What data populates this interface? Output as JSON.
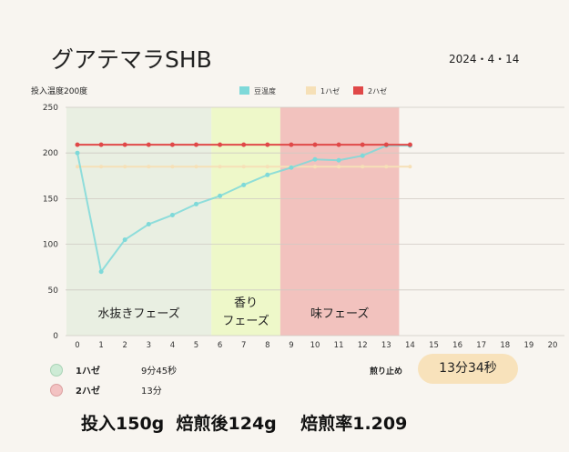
{
  "header": {
    "title": "グアテマラSHB",
    "date": "2024・4・14",
    "y_axis_label": "投入温度200度"
  },
  "chart_data": {
    "type": "line",
    "x": [
      0,
      1,
      2,
      3,
      4,
      5,
      6,
      7,
      8,
      9,
      10,
      11,
      12,
      13,
      14,
      15,
      16,
      17,
      18,
      19,
      20
    ],
    "xlim": [
      0,
      20
    ],
    "ylim": [
      0,
      250
    ],
    "yticks": [
      0,
      50,
      100,
      150,
      200,
      250
    ],
    "grid": true,
    "legend_position": "top",
    "series": [
      {
        "name": "豆温度",
        "color": "#7ed9d9",
        "x": [
          0,
          1,
          2,
          3,
          4,
          5,
          6,
          7,
          8,
          9,
          10,
          11,
          12,
          13,
          14
        ],
        "values": [
          200,
          70,
          105,
          122,
          132,
          144,
          153,
          165,
          176,
          184,
          193,
          192,
          197,
          208,
          208
        ]
      },
      {
        "name": "1ハゼ",
        "color": "#f6e0b7",
        "x": [
          0,
          1,
          2,
          3,
          4,
          5,
          6,
          7,
          8,
          9,
          10,
          11,
          12,
          13,
          14
        ],
        "values": [
          185,
          185,
          185,
          185,
          185,
          185,
          185,
          185,
          185,
          185,
          185,
          185,
          185,
          185,
          185
        ]
      },
      {
        "name": "2ハゼ",
        "color": "#e04848",
        "x": [
          0,
          1,
          2,
          3,
          4,
          5,
          6,
          7,
          8,
          9,
          10,
          11,
          12,
          13,
          14
        ],
        "values": [
          209,
          209,
          209,
          209,
          209,
          209,
          209,
          209,
          209,
          209,
          209,
          209,
          209,
          209,
          209
        ]
      }
    ],
    "phases": [
      {
        "label": "水抜きフェーズ",
        "label_lines": [
          "水抜きフェーズ"
        ],
        "x_start": 0,
        "x_end": 6.1,
        "color": "#e9efe2"
      },
      {
        "label": "香りフェーズ",
        "label_lines": [
          "香り",
          "フェーズ"
        ],
        "x_start": 6.1,
        "x_end": 9,
        "color": "#eef8c9"
      },
      {
        "label": "味フェーズ",
        "label_lines": [
          "味フェーズ"
        ],
        "x_start": 9,
        "x_end": 14,
        "color": "#f2c2be"
      }
    ]
  },
  "events": [
    {
      "name": "1ハゼ",
      "time": "9分45秒",
      "color": "#cdebd5",
      "border": "#a9d3b6"
    },
    {
      "name": "2ハゼ",
      "time": "13分",
      "color": "#f3c2c2",
      "border": "#dba0a0"
    }
  ],
  "stop": {
    "label": "煎り止め",
    "time": "13分34秒"
  },
  "summary": {
    "input": "投入150g",
    "after": "焙煎後124g",
    "ratio": "焙煎率1.209"
  }
}
